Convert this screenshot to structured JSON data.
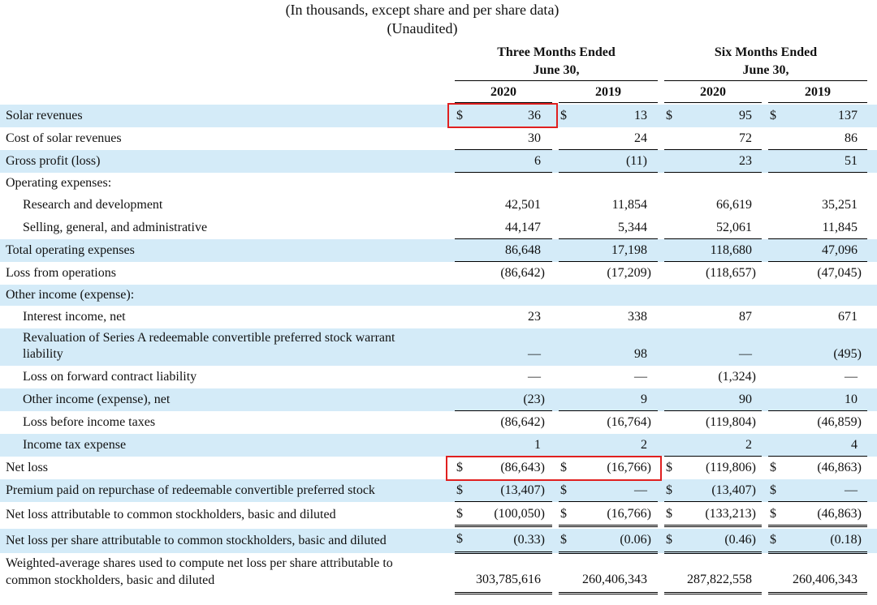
{
  "header": {
    "line1": "(In thousands, except share and per share data)",
    "line2": "(Unaudited)"
  },
  "periods": {
    "three_months": [
      "Three Months Ended",
      "June 30,"
    ],
    "six_months": [
      "Six Months Ended",
      "June 30,"
    ]
  },
  "years": [
    "2020",
    "2019",
    "2020",
    "2019"
  ],
  "rows": [
    {
      "label": "Solar revenues",
      "values": [
        "36",
        "13",
        "95",
        "137"
      ],
      "dollars": true
    },
    {
      "label": "Cost of solar revenues",
      "values": [
        "30",
        "24",
        "72",
        "86"
      ]
    },
    {
      "label": "Gross profit (loss)",
      "values": [
        "6",
        "(11)",
        "23",
        "51"
      ]
    },
    {
      "label": "Operating expenses:",
      "values": [
        "",
        "",
        "",
        ""
      ]
    },
    {
      "label": "Research and development",
      "values": [
        "42,501",
        "11,854",
        "66,619",
        "35,251"
      ]
    },
    {
      "label": "Selling, general, and administrative",
      "values": [
        "44,147",
        "5,344",
        "52,061",
        "11,845"
      ]
    },
    {
      "label": "Total operating expenses",
      "values": [
        "86,648",
        "17,198",
        "118,680",
        "47,096"
      ]
    },
    {
      "label": "Loss from operations",
      "values": [
        "(86,642)",
        "(17,209)",
        "(118,657)",
        "(47,045)"
      ]
    },
    {
      "label": "Other income (expense):",
      "values": [
        "",
        "",
        "",
        ""
      ]
    },
    {
      "label": "Interest income, net",
      "values": [
        "23",
        "338",
        "87",
        "671"
      ]
    },
    {
      "label": "Revaluation of Series A redeemable convertible preferred stock warrant",
      "label2": "liability",
      "values": [
        "—",
        "98",
        "—",
        "(495)"
      ]
    },
    {
      "label": "Loss on forward contract liability",
      "values": [
        "—",
        "—",
        "(1,324)",
        "—"
      ]
    },
    {
      "label": "Other income (expense), net",
      "values": [
        "(23)",
        "9",
        "90",
        "10"
      ]
    },
    {
      "label": "Loss before income taxes",
      "values": [
        "(86,642)",
        "(16,764)",
        "(119,804)",
        "(46,859)"
      ]
    },
    {
      "label": "Income tax expense",
      "values": [
        "1",
        "2",
        "2",
        "4"
      ]
    },
    {
      "label": "Net loss",
      "values": [
        "(86,643)",
        "(16,766)",
        "(119,806)",
        "(46,863)"
      ],
      "dollars": true
    },
    {
      "label": "Premium paid on repurchase of redeemable convertible preferred stock",
      "values": [
        "(13,407)",
        "—",
        "(13,407)",
        "—"
      ],
      "dollars": true
    },
    {
      "label": "Net loss attributable to common stockholders, basic and diluted",
      "values": [
        "(100,050)",
        "(16,766)",
        "(133,213)",
        "(46,863)"
      ],
      "dollars": true
    },
    {
      "label": "Net loss per share attributable to common stockholders, basic and diluted",
      "values": [
        "(0.33)",
        "(0.06)",
        "(0.46)",
        "(0.18)"
      ],
      "dollars": true
    },
    {
      "label": "Weighted-average shares used to compute net loss per share attributable to",
      "label2": "common stockholders, basic and diluted",
      "values": [
        "303,785,616",
        "260,406,343",
        "287,822,558",
        "260,406,343"
      ]
    }
  ],
  "currency_symbol": "$",
  "colors": {
    "row_shade": "#d4ebf8",
    "highlight": "#e02020"
  }
}
